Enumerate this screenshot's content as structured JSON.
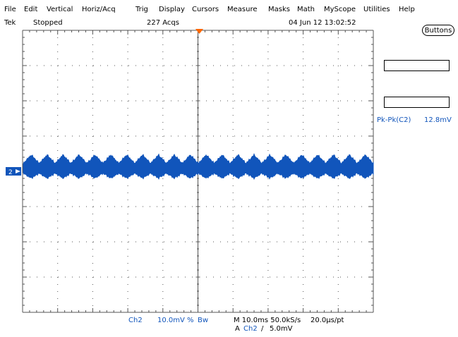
{
  "menu": {
    "file": "File",
    "edit": "Edit",
    "vertical": "Vertical",
    "horiz_acq": "Horiz/Acq",
    "trig": "Trig",
    "display": "Display",
    "cursors": "Cursors",
    "measure": "Measure",
    "masks": "Masks",
    "math": "Math",
    "myscope": "MyScope",
    "utilities": "Utilities",
    "help": "Help"
  },
  "status": {
    "brand": "Tek",
    "run_state": "Stopped",
    "acqs": "227 Acqs",
    "datetime": "04 Jun 12 13:02:52"
  },
  "buttons_label": "Buttons",
  "measurement": {
    "label": "Pk-Pk(C2)",
    "value": "12.8mV"
  },
  "channel_marker": "2",
  "bottom": {
    "channel": "Ch2",
    "scale": "10.0mV",
    "coupling_symbol": "%",
    "bw_symbol": "Bw",
    "timebase": "M 10.0ms 50.0kS/s",
    "resolution": "20.0µs/pt",
    "trigger_prefix": "A",
    "trigger_channel": "Ch2",
    "trigger_slope": "/",
    "trigger_level": "5.0mV"
  },
  "colors": {
    "trace": "#1155bb",
    "grid": "#555555",
    "trigger_marker": "#ff6600",
    "channel_marker_bg": "#1155bb"
  }
}
